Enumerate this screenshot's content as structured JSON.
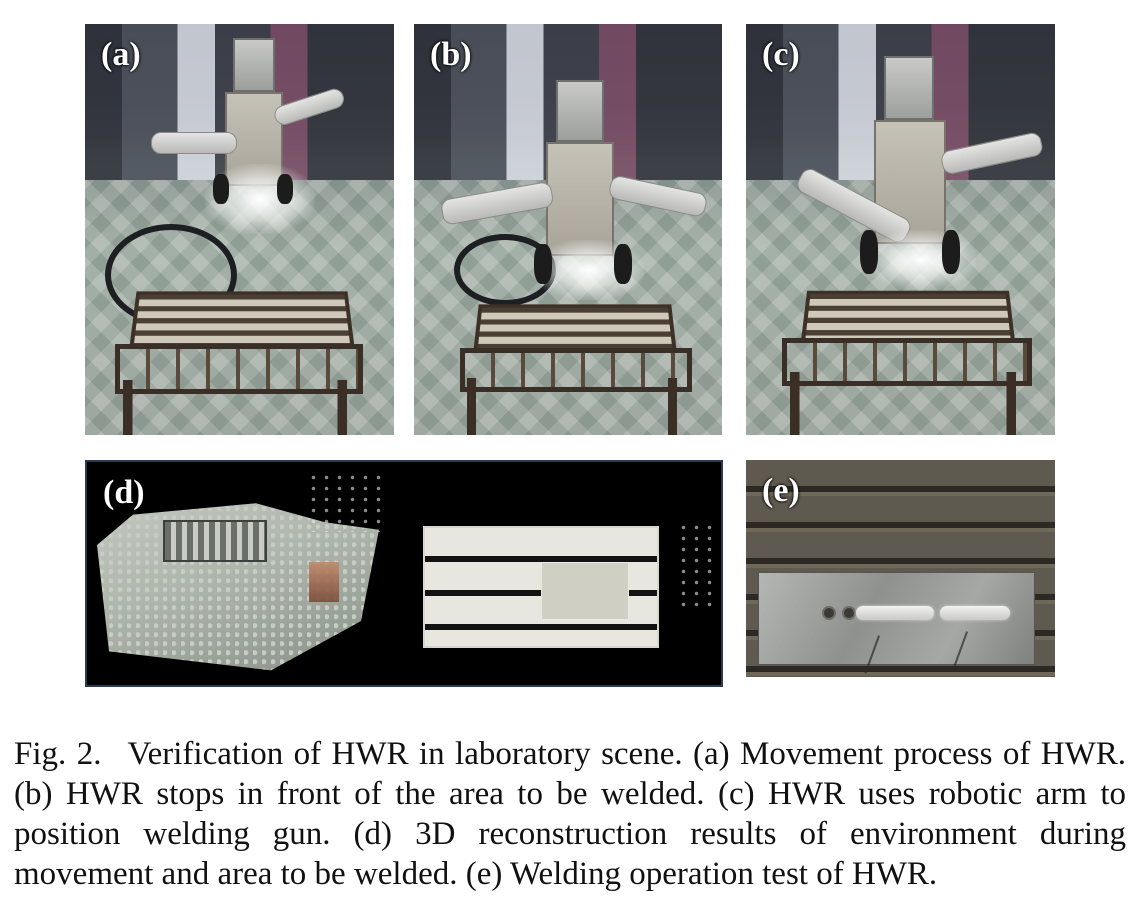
{
  "panels": {
    "a": {
      "label": "(a)"
    },
    "b": {
      "label": "(b)"
    },
    "c": {
      "label": "(c)"
    },
    "d": {
      "label": "(d)"
    },
    "e": {
      "label": "(e)"
    }
  },
  "caption": {
    "number": "Fig. 2.",
    "text": "Verification of HWR in laboratory scene. (a) Movement process of HWR. (b) HWR stops in front of the area to be welded. (c) HWR uses robotic arm to position welding gun. (d) 3D reconstruction results of environment during movement and area to be welded. (e) Welding operation test of HWR."
  }
}
